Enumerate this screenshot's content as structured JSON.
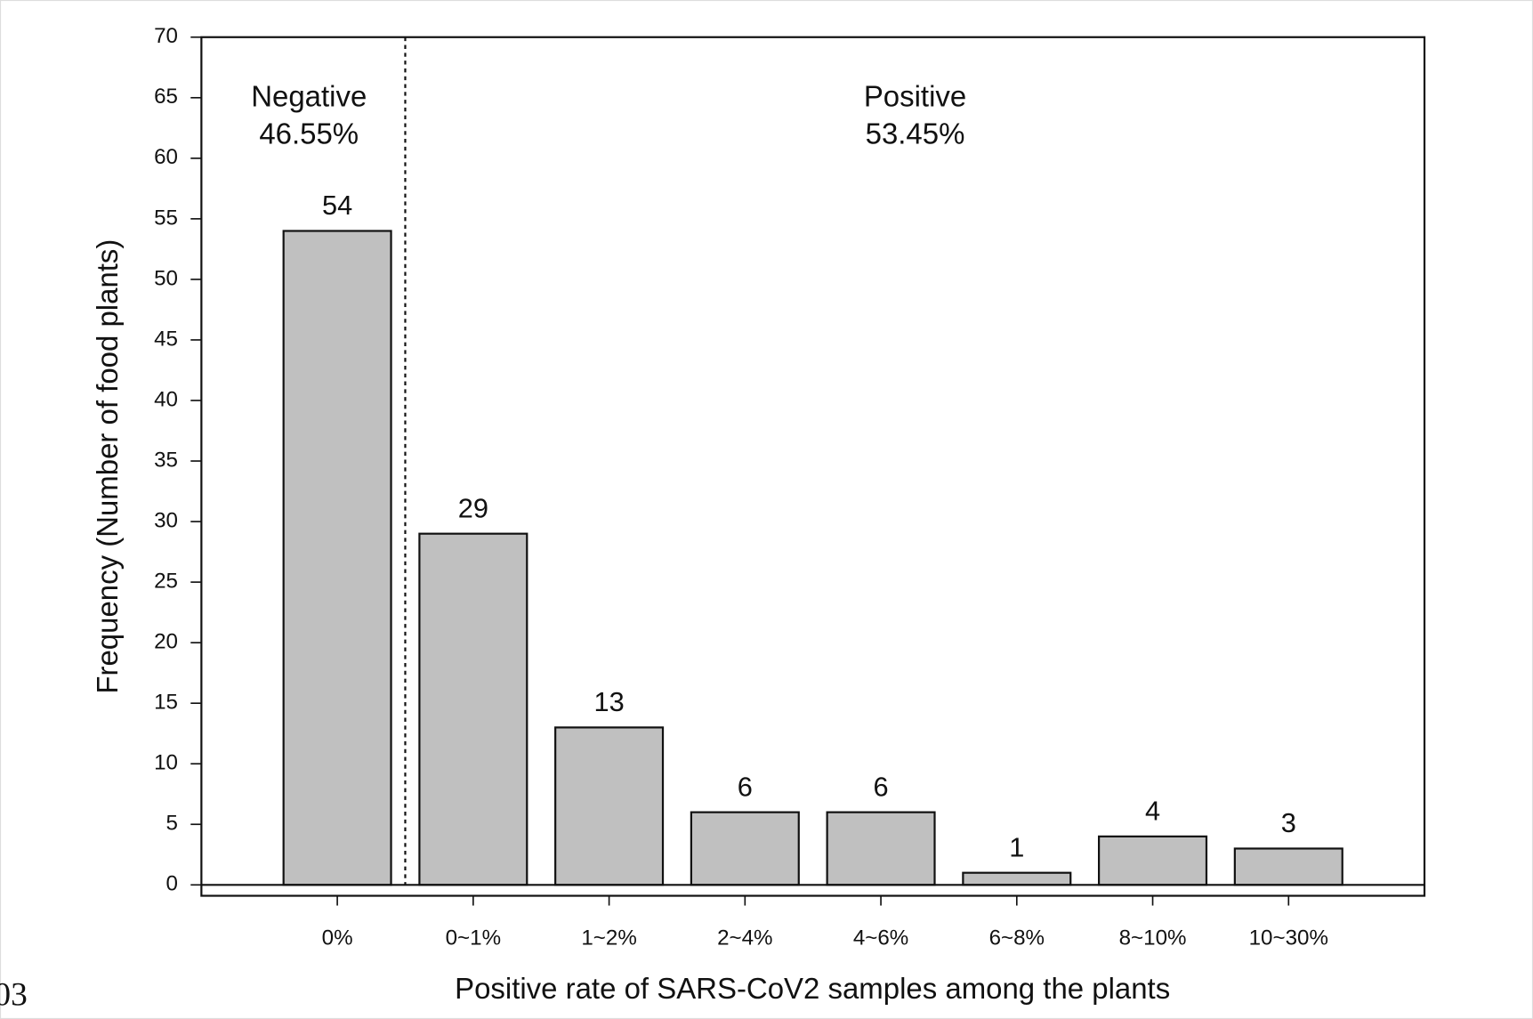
{
  "chart_data": {
    "type": "bar",
    "x_label": "Positive rate of SARS-CoV2 samples among the plants",
    "y_label": "Frequency (Number of food plants)",
    "categories": [
      "0%",
      "0~1%",
      "1~2%",
      "2~4%",
      "4~6%",
      "6~8%",
      "8~10%",
      "10~30%"
    ],
    "values": [
      54,
      29,
      13,
      6,
      6,
      1,
      4,
      3
    ],
    "color": "#c0c0c0",
    "ylim": [
      -0.9,
      70
    ],
    "yticks": [
      0,
      5,
      10,
      15,
      20,
      25,
      30,
      35,
      40,
      45,
      50,
      55,
      60,
      65,
      70
    ],
    "annotations": [
      {
        "lines": [
          "Negative",
          "46.55%"
        ]
      },
      {
        "lines": [
          "Positive",
          "53.45%"
        ]
      }
    ],
    "corner_text": "03"
  }
}
